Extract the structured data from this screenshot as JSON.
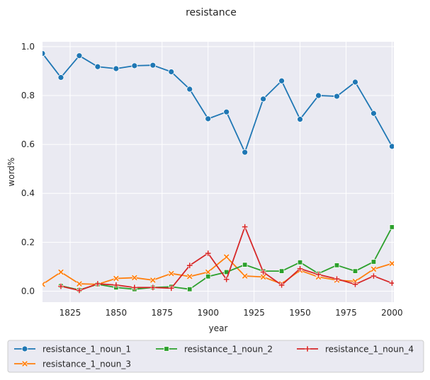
{
  "chart_data": {
    "type": "line",
    "title": "resistance",
    "xlabel": "year",
    "ylabel": "word%",
    "xlim": [
      1810,
      2001
    ],
    "ylim": [
      -0.045,
      1.02
    ],
    "xticks": [
      1825,
      1850,
      1875,
      1900,
      1925,
      1950,
      1975,
      2000
    ],
    "yticks": [
      0.0,
      0.2,
      0.4,
      0.6,
      0.8,
      1.0
    ],
    "grid": true,
    "legend_position": "bottom",
    "x": [
      1810,
      1820,
      1830,
      1840,
      1850,
      1860,
      1870,
      1880,
      1890,
      1900,
      1910,
      1920,
      1930,
      1940,
      1950,
      1960,
      1970,
      1980,
      1990,
      2000
    ],
    "series": [
      {
        "name": "resistance_1_noun_1",
        "color": "#1f77b4",
        "marker": "circle",
        "values": [
          0.972,
          0.874,
          0.963,
          0.918,
          0.91,
          0.922,
          0.924,
          0.897,
          0.826,
          0.705,
          0.733,
          0.568,
          0.786,
          0.86,
          0.703,
          0.8,
          0.797,
          0.855,
          0.727,
          0.592
        ]
      },
      {
        "name": "resistance_1_noun_2",
        "color": "#2ca02c",
        "marker": "square",
        "values": [
          null,
          0.022,
          0.005,
          0.028,
          0.015,
          0.008,
          0.015,
          0.018,
          0.008,
          0.06,
          0.078,
          0.108,
          0.082,
          0.082,
          0.118,
          0.072,
          0.106,
          0.082,
          0.12,
          0.262
        ]
      },
      {
        "name": "resistance_1_noun_3",
        "color": "#ff7f0e",
        "marker": "x",
        "values": [
          0.028,
          0.078,
          0.03,
          0.028,
          0.052,
          0.055,
          0.045,
          0.072,
          0.06,
          0.078,
          0.14,
          0.062,
          0.058,
          0.03,
          0.085,
          0.058,
          0.045,
          0.04,
          0.09,
          0.113
        ]
      },
      {
        "name": "resistance_1_noun_4",
        "color": "#d62728",
        "marker": "plus",
        "values": [
          null,
          0.02,
          0.003,
          0.03,
          0.025,
          0.015,
          0.015,
          0.012,
          0.105,
          0.155,
          0.048,
          0.263,
          0.078,
          0.025,
          0.092,
          0.068,
          0.05,
          0.028,
          0.062,
          0.033
        ]
      }
    ],
    "legend_order": [
      "resistance_1_noun_1",
      "resistance_1_noun_2",
      "resistance_1_noun_4",
      "resistance_1_noun_3"
    ]
  }
}
